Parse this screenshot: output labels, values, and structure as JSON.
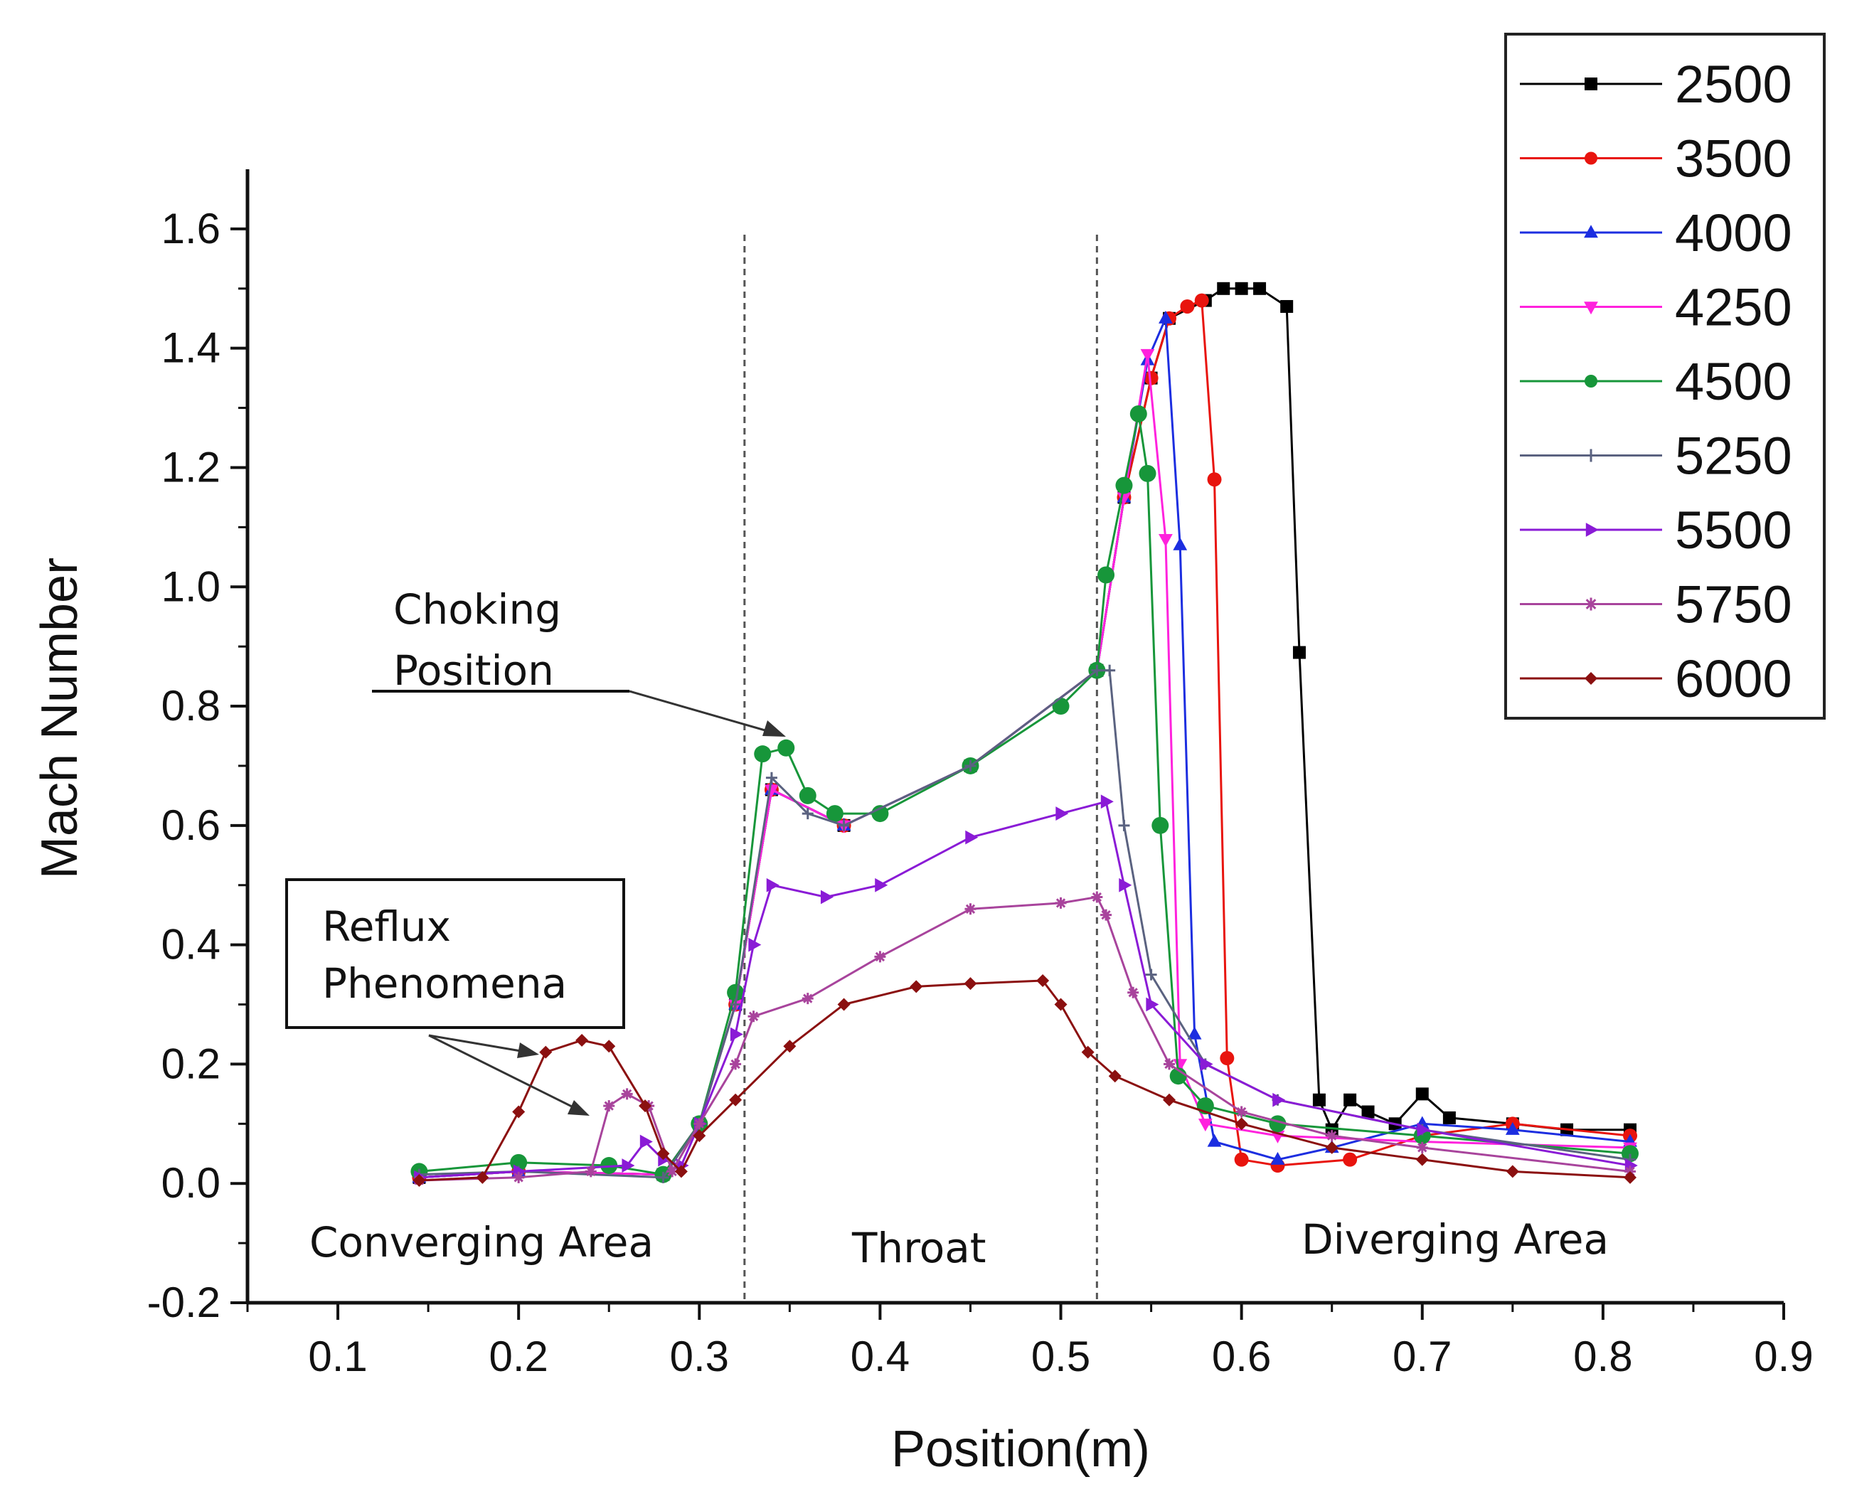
{
  "chart_data": {
    "type": "line",
    "xlabel": "Position(m)",
    "ylabel": "Mach Number",
    "xlim": [
      0.05,
      0.9
    ],
    "ylim": [
      -0.2,
      1.7
    ],
    "x_ticks": [
      "0.1",
      "0.2",
      "0.3",
      "0.4",
      "0.5",
      "0.6",
      "0.7",
      "0.8",
      "0.9"
    ],
    "y_ticks": [
      "-0.2",
      "0.0",
      "0.2",
      "0.4",
      "0.6",
      "0.8",
      "1.0",
      "1.2",
      "1.4",
      "1.6"
    ],
    "region_dividers": [
      0.325,
      0.52
    ],
    "region_labels": [
      "Converging Area",
      "Throat",
      "Diverging Area"
    ],
    "annotations": {
      "choking_line1": "Choking",
      "choking_line2": "Position",
      "reflux_line1": "Reflux",
      "reflux_line2": "Phenomena"
    },
    "legend_position": "top-right",
    "series": [
      {
        "name": "2500",
        "color": "#000000",
        "marker": "square",
        "points": [
          [
            0.145,
            0.01
          ],
          [
            0.2,
            0.02
          ],
          [
            0.28,
            0.015
          ],
          [
            0.3,
            0.1
          ],
          [
            0.32,
            0.3
          ],
          [
            0.34,
            0.66
          ],
          [
            0.38,
            0.6
          ],
          [
            0.45,
            0.7
          ],
          [
            0.52,
            0.86
          ],
          [
            0.535,
            1.15
          ],
          [
            0.55,
            1.35
          ],
          [
            0.56,
            1.45
          ],
          [
            0.58,
            1.48
          ],
          [
            0.59,
            1.5
          ],
          [
            0.6,
            1.5
          ],
          [
            0.61,
            1.5
          ],
          [
            0.625,
            1.47
          ],
          [
            0.632,
            0.89
          ],
          [
            0.643,
            0.14
          ],
          [
            0.65,
            0.09
          ],
          [
            0.66,
            0.14
          ],
          [
            0.67,
            0.12
          ],
          [
            0.685,
            0.1
          ],
          [
            0.7,
            0.15
          ],
          [
            0.715,
            0.11
          ],
          [
            0.75,
            0.1
          ],
          [
            0.78,
            0.09
          ],
          [
            0.815,
            0.09
          ]
        ]
      },
      {
        "name": "3500",
        "color": "#e8140e",
        "marker": "circle",
        "points": [
          [
            0.145,
            0.01
          ],
          [
            0.2,
            0.02
          ],
          [
            0.28,
            0.015
          ],
          [
            0.3,
            0.1
          ],
          [
            0.32,
            0.3
          ],
          [
            0.34,
            0.66
          ],
          [
            0.38,
            0.6
          ],
          [
            0.45,
            0.7
          ],
          [
            0.52,
            0.86
          ],
          [
            0.535,
            1.15
          ],
          [
            0.55,
            1.35
          ],
          [
            0.56,
            1.45
          ],
          [
            0.57,
            1.47
          ],
          [
            0.578,
            1.48
          ],
          [
            0.585,
            1.18
          ],
          [
            0.592,
            0.21
          ],
          [
            0.6,
            0.04
          ],
          [
            0.62,
            0.03
          ],
          [
            0.66,
            0.04
          ],
          [
            0.7,
            0.08
          ],
          [
            0.75,
            0.1
          ],
          [
            0.815,
            0.08
          ]
        ]
      },
      {
        "name": "4000",
        "color": "#1c2ee0",
        "marker": "triangle-up",
        "points": [
          [
            0.145,
            0.01
          ],
          [
            0.2,
            0.02
          ],
          [
            0.28,
            0.015
          ],
          [
            0.3,
            0.1
          ],
          [
            0.32,
            0.3
          ],
          [
            0.34,
            0.66
          ],
          [
            0.38,
            0.6
          ],
          [
            0.45,
            0.7
          ],
          [
            0.52,
            0.86
          ],
          [
            0.535,
            1.15
          ],
          [
            0.548,
            1.38
          ],
          [
            0.558,
            1.45
          ],
          [
            0.566,
            1.07
          ],
          [
            0.574,
            0.25
          ],
          [
            0.585,
            0.07
          ],
          [
            0.62,
            0.04
          ],
          [
            0.65,
            0.06
          ],
          [
            0.7,
            0.1
          ],
          [
            0.75,
            0.09
          ],
          [
            0.815,
            0.07
          ]
        ]
      },
      {
        "name": "4250",
        "color": "#ff22dd",
        "marker": "triangle-down",
        "points": [
          [
            0.145,
            0.01
          ],
          [
            0.2,
            0.02
          ],
          [
            0.28,
            0.015
          ],
          [
            0.3,
            0.1
          ],
          [
            0.32,
            0.3
          ],
          [
            0.34,
            0.66
          ],
          [
            0.38,
            0.6
          ],
          [
            0.45,
            0.7
          ],
          [
            0.52,
            0.86
          ],
          [
            0.535,
            1.15
          ],
          [
            0.548,
            1.39
          ],
          [
            0.558,
            1.08
          ],
          [
            0.566,
            0.2
          ],
          [
            0.58,
            0.1
          ],
          [
            0.62,
            0.08
          ],
          [
            0.7,
            0.07
          ],
          [
            0.815,
            0.06
          ]
        ]
      },
      {
        "name": "4500",
        "color": "#17963a",
        "marker": "circle",
        "points": [
          [
            0.145,
            0.02
          ],
          [
            0.2,
            0.035
          ],
          [
            0.25,
            0.03
          ],
          [
            0.28,
            0.015
          ],
          [
            0.3,
            0.1
          ],
          [
            0.32,
            0.32
          ],
          [
            0.335,
            0.72
          ],
          [
            0.348,
            0.73
          ],
          [
            0.36,
            0.65
          ],
          [
            0.375,
            0.62
          ],
          [
            0.4,
            0.62
          ],
          [
            0.45,
            0.7
          ],
          [
            0.5,
            0.8
          ],
          [
            0.52,
            0.86
          ],
          [
            0.525,
            1.02
          ],
          [
            0.535,
            1.17
          ],
          [
            0.543,
            1.29
          ],
          [
            0.548,
            1.19
          ],
          [
            0.555,
            0.6
          ],
          [
            0.565,
            0.18
          ],
          [
            0.58,
            0.13
          ],
          [
            0.62,
            0.1
          ],
          [
            0.7,
            0.08
          ],
          [
            0.815,
            0.05
          ]
        ]
      },
      {
        "name": "5250",
        "color": "#5a6280",
        "marker": "plus",
        "points": [
          [
            0.145,
            0.015
          ],
          [
            0.2,
            0.02
          ],
          [
            0.28,
            0.01
          ],
          [
            0.3,
            0.1
          ],
          [
            0.32,
            0.3
          ],
          [
            0.34,
            0.68
          ],
          [
            0.36,
            0.62
          ],
          [
            0.38,
            0.6
          ],
          [
            0.45,
            0.7
          ],
          [
            0.52,
            0.86
          ],
          [
            0.527,
            0.86
          ],
          [
            0.535,
            0.6
          ],
          [
            0.55,
            0.35
          ],
          [
            0.58,
            0.2
          ],
          [
            0.62,
            0.14
          ],
          [
            0.7,
            0.09
          ],
          [
            0.815,
            0.04
          ]
        ]
      },
      {
        "name": "5500",
        "color": "#8a1bd6",
        "marker": "triangle-right",
        "points": [
          [
            0.145,
            0.01
          ],
          [
            0.2,
            0.02
          ],
          [
            0.26,
            0.03
          ],
          [
            0.27,
            0.07
          ],
          [
            0.28,
            0.04
          ],
          [
            0.29,
            0.03
          ],
          [
            0.3,
            0.1
          ],
          [
            0.32,
            0.25
          ],
          [
            0.33,
            0.4
          ],
          [
            0.34,
            0.5
          ],
          [
            0.37,
            0.48
          ],
          [
            0.4,
            0.5
          ],
          [
            0.45,
            0.58
          ],
          [
            0.5,
            0.62
          ],
          [
            0.525,
            0.64
          ],
          [
            0.535,
            0.5
          ],
          [
            0.55,
            0.3
          ],
          [
            0.58,
            0.2
          ],
          [
            0.62,
            0.14
          ],
          [
            0.7,
            0.09
          ],
          [
            0.815,
            0.03
          ]
        ]
      },
      {
        "name": "5750",
        "color": "#a8449c",
        "marker": "star",
        "points": [
          [
            0.145,
            0.005
          ],
          [
            0.2,
            0.01
          ],
          [
            0.24,
            0.02
          ],
          [
            0.25,
            0.13
          ],
          [
            0.26,
            0.15
          ],
          [
            0.272,
            0.13
          ],
          [
            0.285,
            0.02
          ],
          [
            0.3,
            0.1
          ],
          [
            0.32,
            0.2
          ],
          [
            0.33,
            0.28
          ],
          [
            0.36,
            0.31
          ],
          [
            0.4,
            0.38
          ],
          [
            0.45,
            0.46
          ],
          [
            0.5,
            0.47
          ],
          [
            0.52,
            0.48
          ],
          [
            0.525,
            0.45
          ],
          [
            0.54,
            0.32
          ],
          [
            0.56,
            0.2
          ],
          [
            0.6,
            0.12
          ],
          [
            0.65,
            0.08
          ],
          [
            0.7,
            0.06
          ],
          [
            0.815,
            0.02
          ]
        ]
      },
      {
        "name": "6000",
        "color": "#8b1010",
        "marker": "diamond",
        "points": [
          [
            0.145,
            0.005
          ],
          [
            0.18,
            0.01
          ],
          [
            0.2,
            0.12
          ],
          [
            0.215,
            0.22
          ],
          [
            0.235,
            0.24
          ],
          [
            0.25,
            0.23
          ],
          [
            0.27,
            0.13
          ],
          [
            0.28,
            0.05
          ],
          [
            0.29,
            0.02
          ],
          [
            0.3,
            0.08
          ],
          [
            0.32,
            0.14
          ],
          [
            0.35,
            0.23
          ],
          [
            0.38,
            0.3
          ],
          [
            0.42,
            0.33
          ],
          [
            0.45,
            0.335
          ],
          [
            0.49,
            0.34
          ],
          [
            0.5,
            0.3
          ],
          [
            0.515,
            0.22
          ],
          [
            0.53,
            0.18
          ],
          [
            0.56,
            0.14
          ],
          [
            0.6,
            0.1
          ],
          [
            0.65,
            0.06
          ],
          [
            0.7,
            0.04
          ],
          [
            0.75,
            0.02
          ],
          [
            0.815,
            0.01
          ]
        ]
      }
    ]
  }
}
